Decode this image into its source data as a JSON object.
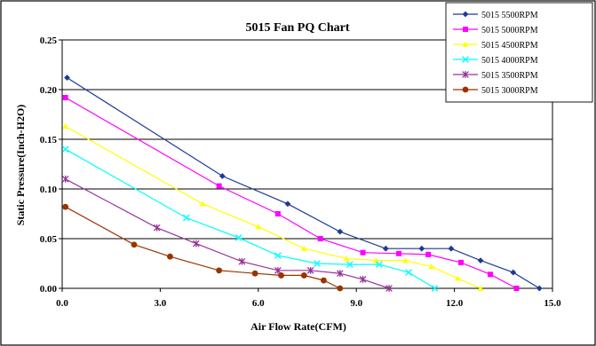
{
  "chart_data": {
    "type": "line",
    "title": "5015 Fan PQ Chart",
    "xlabel": "Air Flow Rate(CFM)",
    "ylabel": "Static Pressure(Inch-H2O)",
    "xlim": [
      0,
      15
    ],
    "ylim": [
      0,
      0.25
    ],
    "xticks": [
      0,
      3,
      6,
      9,
      12,
      15
    ],
    "xtick_labels": [
      "0.0",
      "3.0",
      "6.0",
      "9.0",
      "12.0",
      "15.0"
    ],
    "yticks": [
      0,
      0.05,
      0.1,
      0.15,
      0.2,
      0.25
    ],
    "ytick_labels": [
      "0.00",
      "0.05",
      "0.10",
      "0.15",
      "0.20",
      "0.25"
    ],
    "grid": "horizontal",
    "legend_position": "top-right",
    "series": [
      {
        "name": "5015  5500RPM",
        "color": "#1f3a93",
        "marker": "diamond",
        "points": [
          [
            0.15,
            0.212
          ],
          [
            4.9,
            0.113
          ],
          [
            6.9,
            0.085
          ],
          [
            8.5,
            0.057
          ],
          [
            9.9,
            0.04
          ],
          [
            11,
            0.04
          ],
          [
            11.9,
            0.04
          ],
          [
            12.8,
            0.028
          ],
          [
            13.8,
            0.016
          ],
          [
            14.6,
            0.0
          ]
        ]
      },
      {
        "name": "5015 5000RPM",
        "color": "#ff00ff",
        "marker": "square",
        "points": [
          [
            0.1,
            0.192
          ],
          [
            4.8,
            0.103
          ],
          [
            6.6,
            0.075
          ],
          [
            7.9,
            0.05
          ],
          [
            9.2,
            0.036
          ],
          [
            10.3,
            0.035
          ],
          [
            11.2,
            0.034
          ],
          [
            12.2,
            0.026
          ],
          [
            13.1,
            0.014
          ],
          [
            13.9,
            0.0
          ]
        ]
      },
      {
        "name": "5015  4500RPM",
        "color": "#ffff00",
        "marker": "triangle",
        "points": [
          [
            0.1,
            0.163
          ],
          [
            4.3,
            0.085
          ],
          [
            6.0,
            0.062
          ],
          [
            7.4,
            0.04
          ],
          [
            8.7,
            0.03
          ],
          [
            9.6,
            0.028
          ],
          [
            10.5,
            0.028
          ],
          [
            11.3,
            0.022
          ],
          [
            12.1,
            0.01
          ],
          [
            12.8,
            0.0
          ]
        ]
      },
      {
        "name": "5015 4000RPM",
        "color": "#00ffff",
        "marker": "x",
        "points": [
          [
            0.1,
            0.14
          ],
          [
            3.8,
            0.071
          ],
          [
            5.4,
            0.051
          ],
          [
            6.6,
            0.033
          ],
          [
            7.8,
            0.025
          ],
          [
            8.8,
            0.024
          ],
          [
            9.7,
            0.024
          ],
          [
            10.6,
            0.016
          ],
          [
            11.4,
            0.0
          ]
        ]
      },
      {
        "name": "5015  3500RPM",
        "color": "#993399",
        "marker": "star",
        "points": [
          [
            0.1,
            0.11
          ],
          [
            2.9,
            0.061
          ],
          [
            4.1,
            0.045
          ],
          [
            5.5,
            0.027
          ],
          [
            6.6,
            0.018
          ],
          [
            7.6,
            0.018
          ],
          [
            8.5,
            0.015
          ],
          [
            9.2,
            0.009
          ],
          [
            10.0,
            0.0
          ]
        ]
      },
      {
        "name": "5015  3000RPM",
        "color": "#993300",
        "marker": "circle",
        "points": [
          [
            0.1,
            0.082
          ],
          [
            2.2,
            0.044
          ],
          [
            3.3,
            0.032
          ],
          [
            4.8,
            0.018
          ],
          [
            5.9,
            0.015
          ],
          [
            6.7,
            0.013
          ],
          [
            7.4,
            0.013
          ],
          [
            8.0,
            0.008
          ],
          [
            8.5,
            0.0
          ]
        ]
      }
    ]
  }
}
